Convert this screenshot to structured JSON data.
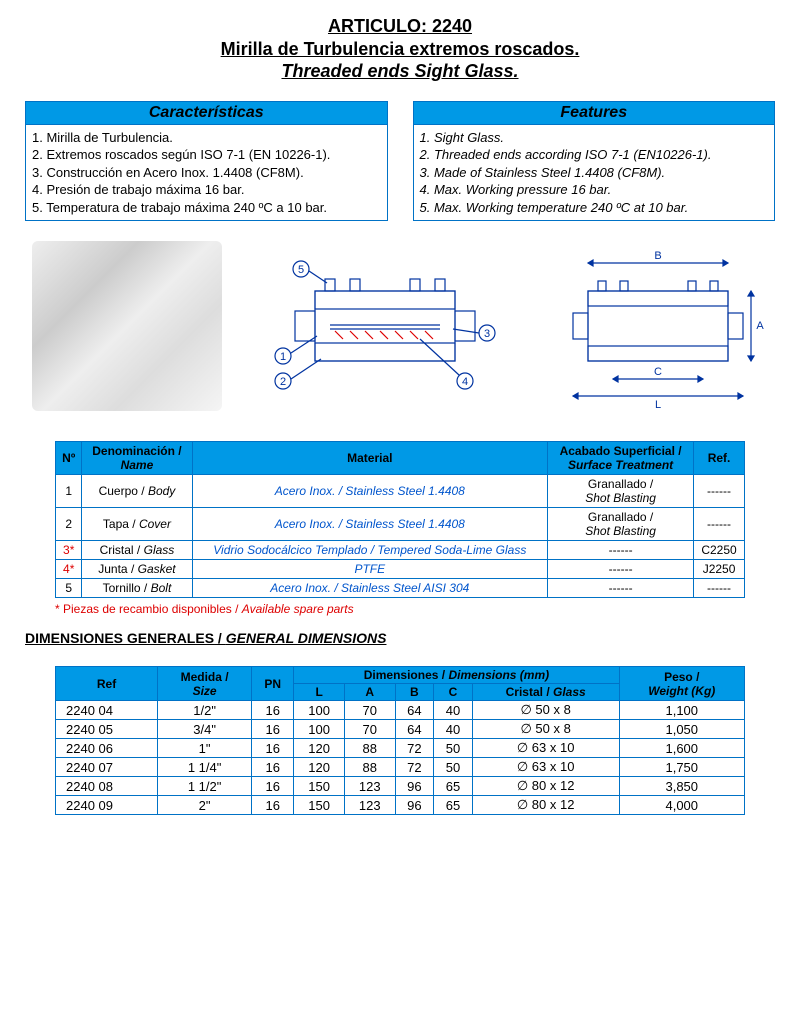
{
  "title": {
    "line1": "ARTICULO:  2240",
    "line2": "Mirilla de Turbulencia extremos roscados.",
    "line3": "Threaded ends Sight Glass."
  },
  "colors": {
    "header_bg": "#0099e6",
    "border": "#0072c6",
    "link_blue": "#0055cc",
    "red": "#d00",
    "diagram_blue": "#0033a0"
  },
  "caracteristicas": {
    "header": "Características",
    "items": [
      "1. Mirilla de Turbulencia.",
      "2. Extremos roscados según ISO 7-1 (EN 10226-1).",
      "3. Construcción en Acero Inox. 1.4408  (CF8M).",
      "4. Presión de trabajo máxima 16 bar.",
      "5. Temperatura de trabajo máxima 240 ºC a 10 bar."
    ]
  },
  "features": {
    "header": "Features",
    "items": [
      "1. Sight Glass.",
      "2. Threaded ends according ISO 7-1 (EN10226-1).",
      "3. Made of Stainless Steel 1.4408 (CF8M).",
      "4. Max. Working pressure  16  bar.",
      "5. Max. Working temperature  240 ºC at 10 bar."
    ]
  },
  "diagram_callouts": [
    "1",
    "2",
    "3",
    "4",
    "5"
  ],
  "dim_labels": [
    "A",
    "B",
    "C",
    "L"
  ],
  "parts_table": {
    "headers": {
      "no": "Nº",
      "name": "Denominación / Name",
      "material": "Material",
      "surface": "Acabado Superficial / Surface Treatment",
      "ref": "Ref."
    },
    "rows": [
      {
        "no": "1",
        "no_red": false,
        "name_es": "Cuerpo",
        "name_en": "Body",
        "material": "Acero Inox. / Stainless Steel 1.4408",
        "surface_es": "Granallado",
        "surface_en": "Shot Blasting",
        "ref": "------"
      },
      {
        "no": "2",
        "no_red": false,
        "name_es": "Tapa",
        "name_en": "Cover",
        "material": "Acero Inox. / Stainless Steel 1.4408",
        "surface_es": "Granallado",
        "surface_en": "Shot Blasting",
        "ref": "------"
      },
      {
        "no": "3*",
        "no_red": true,
        "name_es": "Cristal",
        "name_en": "Glass",
        "material": "Vidrio Sodocálcico Templado  / Tempered Soda-Lime Glass",
        "surface": "------",
        "ref": "C2250"
      },
      {
        "no": "4*",
        "no_red": true,
        "name_es": "Junta",
        "name_en": "Gasket",
        "material": "PTFE",
        "surface": "------",
        "ref": "J2250"
      },
      {
        "no": "5",
        "no_red": false,
        "name_es": "Tornillo",
        "name_en": "Bolt",
        "material": "Acero Inox. / Stainless Steel AISI 304",
        "surface": "------",
        "ref": "------"
      }
    ]
  },
  "spare_note": {
    "es": "* Piezas de recambio disponibles",
    "en": "Available spare parts"
  },
  "dim_heading": {
    "es": "DIMENSIONES GENERALES",
    "en": "GENERAL DIMENSIONS"
  },
  "dims_table": {
    "headers": {
      "ref": "Ref",
      "size": "Medida / Size",
      "pn": "PN",
      "dims_group": "Dimensiones / Dimensions (mm)",
      "L": "L",
      "A": "A",
      "B": "B",
      "C": "C",
      "glass": "Cristal / Glass",
      "weight": "Peso / Weight  (Kg)"
    },
    "rows": [
      {
        "ref": "2240 04",
        "size": "1/2\"",
        "pn": "16",
        "L": "100",
        "A": "70",
        "B": "64",
        "C": "40",
        "glass": "∅ 50 x 8",
        "w": "1,100"
      },
      {
        "ref": "2240 05",
        "size": "3/4\"",
        "pn": "16",
        "L": "100",
        "A": "70",
        "B": "64",
        "C": "40",
        "glass": "∅ 50 x 8",
        "w": "1,050"
      },
      {
        "ref": "2240 06",
        "size": "1\"",
        "pn": "16",
        "L": "120",
        "A": "88",
        "B": "72",
        "C": "50",
        "glass": "∅ 63 x 10",
        "w": "1,600"
      },
      {
        "ref": "2240 07",
        "size": "1 1/4\"",
        "pn": "16",
        "L": "120",
        "A": "88",
        "B": "72",
        "C": "50",
        "glass": "∅ 63 x 10",
        "w": "1,750"
      },
      {
        "ref": "2240 08",
        "size": "1 1/2\"",
        "pn": "16",
        "L": "150",
        "A": "123",
        "B": "96",
        "C": "65",
        "glass": "∅ 80 x 12",
        "w": "3,850"
      },
      {
        "ref": "2240 09",
        "size": "2\"",
        "pn": "16",
        "L": "150",
        "A": "123",
        "B": "96",
        "C": "65",
        "glass": "∅ 80 x 12",
        "w": "4,000"
      }
    ]
  }
}
